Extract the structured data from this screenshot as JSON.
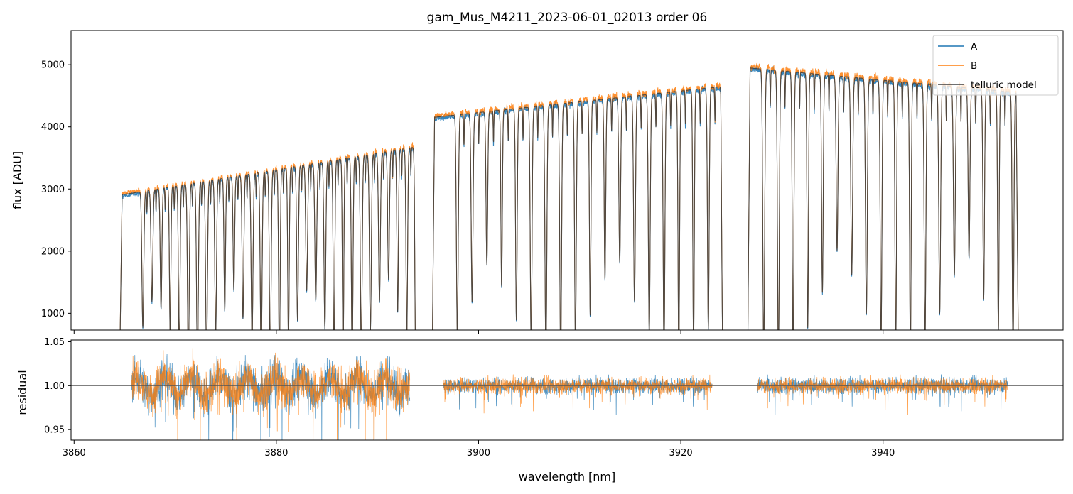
{
  "chart_data": [
    {
      "type": "line",
      "panel": "top",
      "title": "gam_Mus_M4211_2023-06-01_02013  order 06",
      "xlabel": "",
      "ylabel": "flux [ADU]",
      "xlim": [
        3859.7,
        3957.8
      ],
      "ylim": [
        730,
        5550
      ],
      "yticks": [
        1000,
        2000,
        3000,
        4000,
        5000
      ],
      "xticks": [
        3860,
        3880,
        3900,
        3920,
        3940
      ],
      "legend_position": "top-right",
      "segments": [
        {
          "x_start": 3864.5,
          "x_end": 3893.9,
          "continuum_start": 2900,
          "continuum_end": 3680,
          "line_spacing": 0.9,
          "line_first": 3866.8
        },
        {
          "x_start": 3895.4,
          "x_end": 3924.2,
          "continuum_start": 4150,
          "continuum_end": 4650,
          "line_spacing": 1.46,
          "line_first": 3897.9
        },
        {
          "x_start": 3926.6,
          "x_end": 3953.4,
          "continuum_start": 4950,
          "continuum_end": 4550,
          "line_spacing": 1.45,
          "line_first": 3928.2
        }
      ],
      "series": [
        {
          "name": "A",
          "color": "#1f77b4"
        },
        {
          "name": "B",
          "color": "#ff7f0e"
        },
        {
          "name": "telluric model",
          "color": "#404040"
        }
      ]
    },
    {
      "type": "line",
      "panel": "bottom",
      "xlabel": "wavelength [nm]",
      "ylabel": "residual",
      "xlim": [
        3859.7,
        3957.8
      ],
      "ylim": [
        0.938,
        1.052
      ],
      "yticks": [
        0.95,
        1.0,
        1.05
      ],
      "ytick_labels": [
        "0.95",
        "1.00",
        "1.05"
      ],
      "xticks": [
        3860,
        3880,
        3900,
        3920,
        3940
      ],
      "reference_line": 1.0,
      "segments": [
        {
          "x_start": 3865.7,
          "x_end": 3893.2,
          "scatter": 0.028
        },
        {
          "x_start": 3896.5,
          "x_end": 3923.1,
          "scatter": 0.011
        },
        {
          "x_start": 3927.6,
          "x_end": 3952.3,
          "scatter": 0.011
        }
      ],
      "series": [
        {
          "name": "A",
          "color": "#1f77b4"
        },
        {
          "name": "B",
          "color": "#ff7f0e"
        }
      ]
    }
  ]
}
